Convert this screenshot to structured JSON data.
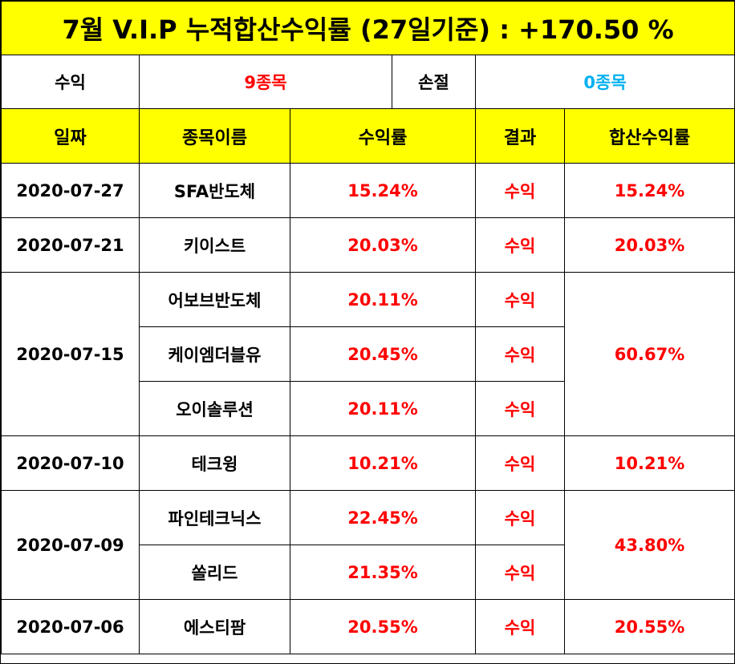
{
  "title": "7월 V.I.P 누적합산수익률 (27일기준) : +170.50 %",
  "summary": {
    "profit_label": "수익",
    "profit_value": "9종목",
    "loss_label": "손절",
    "loss_value": "0종목"
  },
  "columns": [
    "일짜",
    "종목이름",
    "수익률",
    "결과",
    "합산수익률"
  ],
  "groups": [
    {
      "date": "2020-07-27",
      "total": "15.24%",
      "stocks": [
        {
          "name": "SFA반도체",
          "rate": "15.24%",
          "result": "수익"
        }
      ]
    },
    {
      "date": "2020-07-21",
      "total": "20.03%",
      "stocks": [
        {
          "name": "키이스트",
          "rate": "20.03%",
          "result": "수익"
        }
      ]
    },
    {
      "date": "2020-07-15",
      "total": "60.67%",
      "stocks": [
        {
          "name": "어보브반도체",
          "rate": "20.11%",
          "result": "수익"
        },
        {
          "name": "케이엠더블유",
          "rate": "20.45%",
          "result": "수익"
        },
        {
          "name": "오이솔루션",
          "rate": "20.11%",
          "result": "수익"
        }
      ]
    },
    {
      "date": "2020-07-10",
      "total": "10.21%",
      "stocks": [
        {
          "name": "테크윙",
          "rate": "10.21%",
          "result": "수익"
        }
      ]
    },
    {
      "date": "2020-07-09",
      "total": "43.80%",
      "stocks": [
        {
          "name": "파인테크닉스",
          "rate": "22.45%",
          "result": "수익"
        },
        {
          "name": "쏠리드",
          "rate": "21.35%",
          "result": "수익"
        }
      ]
    },
    {
      "date": "2020-07-06",
      "total": "20.55%",
      "stocks": [
        {
          "name": "에스티팜",
          "rate": "20.55%",
          "result": "수익"
        }
      ]
    }
  ],
  "colors": {
    "header_bg": "#ffff00",
    "profit_red": "#ff0000",
    "loss_blue": "#00b0f0"
  }
}
